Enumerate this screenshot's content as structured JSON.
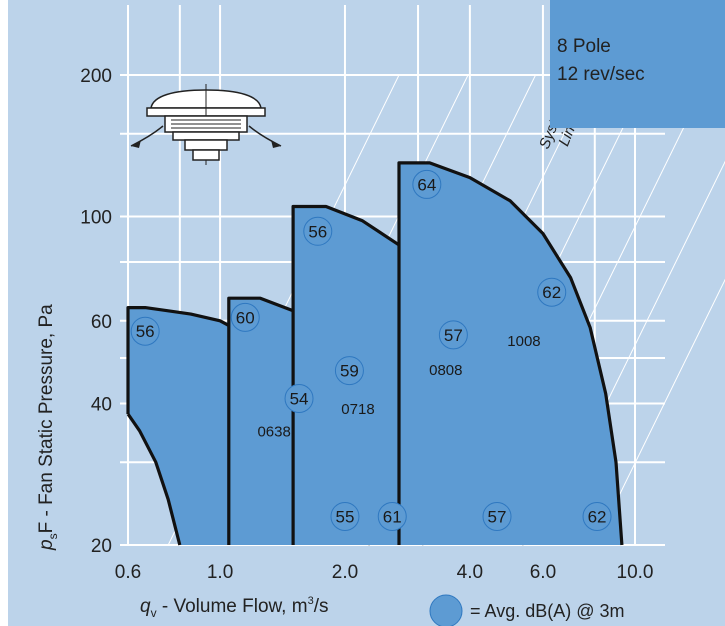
{
  "chart_data": {
    "type": "area",
    "x_scale": "log",
    "y_scale": "log",
    "xlim": [
      0.6,
      10.0
    ],
    "ylim": [
      20,
      200
    ],
    "x_ticks": [
      "0.6",
      "1.0",
      "2.0",
      "4.0",
      "6.0",
      "10.0"
    ],
    "y_ticks": [
      "20",
      "40",
      "60",
      "100",
      "200"
    ],
    "xlabel_main": "q",
    "xlabel_sub": "v",
    "xlabel_rest": " - Volume Flow, m",
    "xlabel_sup": "3",
    "xlabel_end": "/s",
    "ylabel_main": "p",
    "ylabel_sub": "s",
    "ylabel_rest": "F - Fan Static Pressure, Pa",
    "info_line1": "8 Pole",
    "info_line2": "12 rev/sec",
    "system_lines_label": [
      "System",
      "Lines"
    ],
    "legend_text": "= Avg. dB(A) @ 3m",
    "grid": true,
    "colors": {
      "background": "#bcd3ea",
      "fill": "#5d9bd3",
      "curve": "#111111",
      "grid": "#ffffff",
      "info_box": "#5d9bd3"
    },
    "series": [
      {
        "name": "0638",
        "curve": [
          [
            0.6,
            38
          ],
          [
            0.6,
            64
          ],
          [
            0.66,
            64
          ],
          [
            0.75,
            63
          ],
          [
            0.85,
            62
          ],
          [
            1.0,
            60
          ],
          [
            1.2,
            55
          ],
          [
            1.4,
            49
          ],
          [
            1.6,
            43
          ],
          [
            1.8,
            36
          ],
          [
            2.0,
            30
          ],
          [
            2.15,
            25
          ],
          [
            2.3,
            20
          ]
        ],
        "left": [
          [
            0.6,
            38
          ],
          [
            0.64,
            35
          ],
          [
            0.7,
            30
          ],
          [
            0.75,
            25
          ],
          [
            0.8,
            20
          ]
        ],
        "dba": [
          {
            "x": 0.66,
            "y": 57,
            "v": "56"
          },
          {
            "x": 1.55,
            "y": 41,
            "v": "54"
          },
          {
            "x": 2.0,
            "y": 23,
            "v": "55"
          }
        ]
      },
      {
        "name": "0718",
        "curve": [
          [
            1.05,
            20
          ],
          [
            1.05,
            67
          ],
          [
            1.25,
            67
          ],
          [
            1.5,
            63
          ],
          [
            1.8,
            58
          ],
          [
            2.1,
            52
          ],
          [
            2.4,
            44
          ],
          [
            2.7,
            36
          ],
          [
            2.95,
            28
          ],
          [
            3.1,
            20
          ]
        ],
        "dba": [
          {
            "x": 1.15,
            "y": 61,
            "v": "60"
          },
          {
            "x": 2.05,
            "y": 47,
            "v": "59"
          },
          {
            "x": 2.6,
            "y": 23,
            "v": "61"
          }
        ]
      },
      {
        "name": "0808",
        "curve": [
          [
            1.5,
            20
          ],
          [
            1.5,
            105
          ],
          [
            1.8,
            105
          ],
          [
            2.2,
            98
          ],
          [
            2.7,
            87
          ],
          [
            3.2,
            74
          ],
          [
            3.7,
            62
          ],
          [
            4.2,
            50
          ],
          [
            4.7,
            38
          ],
          [
            5.1,
            27
          ],
          [
            5.4,
            20
          ]
        ],
        "dba": [
          {
            "x": 1.72,
            "y": 93,
            "v": "56"
          },
          {
            "x": 3.65,
            "y": 56,
            "v": "57"
          },
          {
            "x": 4.65,
            "y": 23,
            "v": "57"
          }
        ]
      },
      {
        "name": "1008",
        "curve": [
          [
            2.7,
            20
          ],
          [
            2.7,
            130
          ],
          [
            3.2,
            130
          ],
          [
            4.0,
            121
          ],
          [
            5.0,
            108
          ],
          [
            6.0,
            92
          ],
          [
            7.0,
            74
          ],
          [
            7.8,
            58
          ],
          [
            8.5,
            42
          ],
          [
            9.0,
            30
          ],
          [
            9.3,
            20
          ]
        ],
        "dba": [
          {
            "x": 3.15,
            "y": 117,
            "v": "64"
          },
          {
            "x": 6.3,
            "y": 69,
            "v": "62"
          },
          {
            "x": 8.1,
            "y": 23,
            "v": "62"
          }
        ]
      }
    ],
    "model_labels": [
      {
        "text": "0638",
        "x": 1.35,
        "y": 34
      },
      {
        "text": "0718",
        "x": 2.15,
        "y": 38
      },
      {
        "text": "0808",
        "x": 3.5,
        "y": 46
      },
      {
        "text": "1008",
        "x": 5.4,
        "y": 53
      }
    ]
  }
}
